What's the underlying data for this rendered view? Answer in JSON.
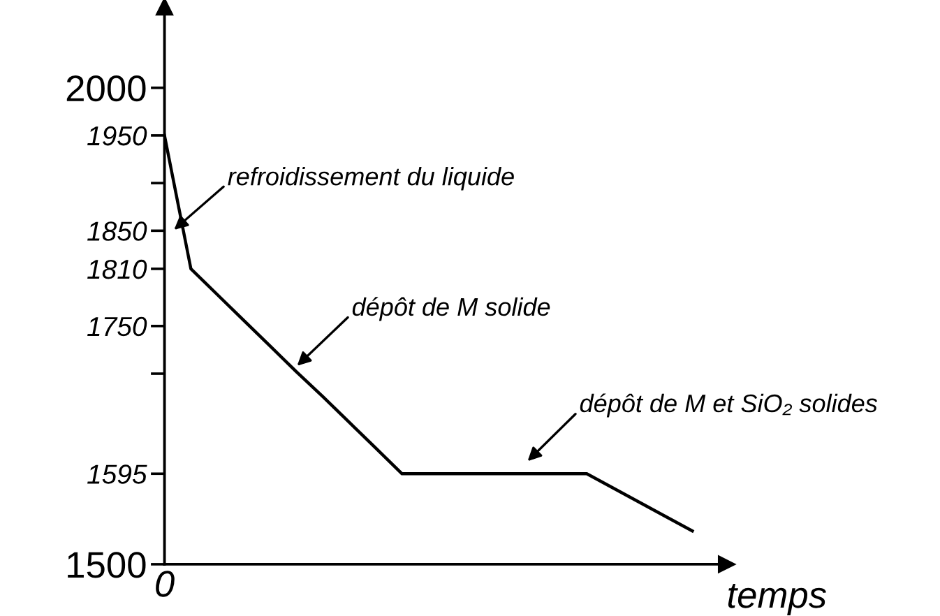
{
  "chart_data": {
    "type": "line",
    "xlabel": "temps",
    "categories": [
      null,
      null,
      null,
      null,
      null,
      null,
      null,
      null,
      null,
      null,
      null,
      null,
      null,
      null,
      null,
      null,
      null,
      null,
      null,
      null,
      null
    ],
    "series": [
      {
        "color": "#000000",
        "values": [
          1950,
          1810,
          1783,
          1756,
          1729,
          1702,
          1676,
          1649,
          1622,
          1595,
          1595,
          1595,
          1595,
          1595,
          1595,
          1595,
          1595,
          1580,
          1565,
          1550,
          1535
        ]
      }
    ],
    "ylim": [
      1500,
      2085
    ],
    "yticks": [
      1500,
      2000,
      1950,
      {
        "value": 1900,
        "label": null
      },
      1850,
      1810,
      1750,
      {
        "value": 1700,
        "label": null
      },
      1595
    ],
    "tick_labels": "y",
    "annotations": [
      "0",
      "refroidissement du liquide",
      "dépôt de M solide",
      "dépôt de M et SiO₂ solides"
    ],
    "grid": false,
    "legend": false,
    "marker": "none",
    "line_style": "solid"
  }
}
